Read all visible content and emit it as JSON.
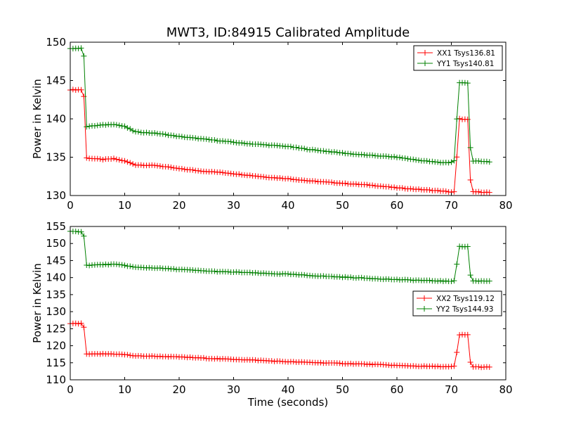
{
  "title": "MWT3, ID:84915 Calibrated Amplitude",
  "chart_data": [
    {
      "type": "line",
      "xlabel": "",
      "ylabel": "Power in Kelvin",
      "xlim": [
        0,
        80
      ],
      "ylim": [
        130,
        150
      ],
      "xticks": [
        0,
        10,
        20,
        30,
        40,
        50,
        60,
        70,
        80
      ],
      "yticks": [
        130,
        135,
        140,
        145,
        150
      ],
      "grid": false,
      "legend": "top-right",
      "series": [
        {
          "name": "XX1 Tsys136.81",
          "color": "#ff0000",
          "x": [
            0,
            2,
            2.4,
            2.8,
            3.0,
            6,
            8,
            10,
            12,
            16,
            20,
            24,
            28,
            32,
            36,
            40,
            44,
            48,
            52,
            56,
            60,
            64,
            68,
            69.5,
            70.3,
            70.6,
            71.0,
            71.5,
            73.0,
            73.3,
            73.6,
            74,
            77
          ],
          "y": [
            143.8,
            143.8,
            143.9,
            140,
            134.9,
            134.7,
            134.8,
            134.5,
            134.0,
            133.9,
            133.5,
            133.2,
            133.0,
            132.7,
            132.4,
            132.2,
            131.9,
            131.7,
            131.5,
            131.3,
            131.0,
            130.8,
            130.6,
            130.5,
            130.4,
            130.5,
            135,
            140.0,
            139.9,
            135,
            130.5,
            130.5,
            130.4
          ]
        },
        {
          "name": "YY1 Tsys140.81",
          "color": "#008000",
          "x": [
            0,
            2,
            2.4,
            2.8,
            3.0,
            6,
            8,
            10,
            12,
            16,
            20,
            24,
            28,
            32,
            36,
            40,
            44,
            48,
            52,
            56,
            60,
            64,
            68,
            69.5,
            70.3,
            70.6,
            71.0,
            71.5,
            73.0,
            73.3,
            73.6,
            74,
            77
          ],
          "y": [
            149.2,
            149.2,
            149.3,
            145,
            139.0,
            139.2,
            139.3,
            139.0,
            138.3,
            138.1,
            137.7,
            137.4,
            137.1,
            136.8,
            136.6,
            136.4,
            136.0,
            135.7,
            135.4,
            135.2,
            135.0,
            134.6,
            134.3,
            134.3,
            134.4,
            134.6,
            140,
            144.7,
            144.7,
            140,
            134.4,
            134.5,
            134.4
          ]
        }
      ]
    },
    {
      "type": "line",
      "xlabel": "Time (seconds)",
      "ylabel": "Power in Kelvin",
      "xlim": [
        0,
        80
      ],
      "ylim": [
        110,
        155
      ],
      "xticks": [
        0,
        10,
        20,
        30,
        40,
        50,
        60,
        70,
        80
      ],
      "yticks": [
        110,
        115,
        120,
        125,
        130,
        135,
        140,
        145,
        150,
        155
      ],
      "grid": false,
      "legend": "right",
      "series": [
        {
          "name": "XX2 Tsys119.12",
          "color": "#ff0000",
          "x": [
            0,
            2,
            2.4,
            2.8,
            3.0,
            6,
            8,
            10,
            12,
            16,
            20,
            24,
            28,
            32,
            36,
            40,
            44,
            48,
            52,
            56,
            60,
            64,
            68,
            69.5,
            70.3,
            70.6,
            71.0,
            71.5,
            73.0,
            73.3,
            73.6,
            74,
            77
          ],
          "y": [
            126.5,
            126.5,
            126.6,
            122,
            117.5,
            117.6,
            117.6,
            117.4,
            117.0,
            116.9,
            116.7,
            116.4,
            116.1,
            115.9,
            115.6,
            115.3,
            115.1,
            114.9,
            114.7,
            114.5,
            114.2,
            114.0,
            113.9,
            113.8,
            113.9,
            114.0,
            118,
            123.2,
            123.2,
            118,
            113.8,
            113.8,
            113.7
          ]
        },
        {
          "name": "YY2 Tsys144.93",
          "color": "#008000",
          "x": [
            0,
            2,
            2.4,
            2.8,
            3.0,
            6,
            8,
            10,
            12,
            16,
            20,
            24,
            28,
            32,
            36,
            40,
            44,
            48,
            52,
            56,
            60,
            64,
            68,
            69.5,
            70.3,
            70.6,
            71.0,
            71.5,
            73.0,
            73.3,
            73.6,
            74,
            77
          ],
          "y": [
            153.5,
            153.5,
            153.6,
            148,
            143.6,
            143.8,
            143.9,
            143.6,
            143.0,
            142.8,
            142.4,
            142.0,
            141.7,
            141.5,
            141.2,
            141.0,
            140.6,
            140.3,
            140.0,
            139.7,
            139.4,
            139.2,
            139.0,
            138.9,
            139.0,
            139.2,
            144,
            149.1,
            149.1,
            144,
            139.1,
            139.0,
            139.0
          ]
        }
      ]
    }
  ]
}
